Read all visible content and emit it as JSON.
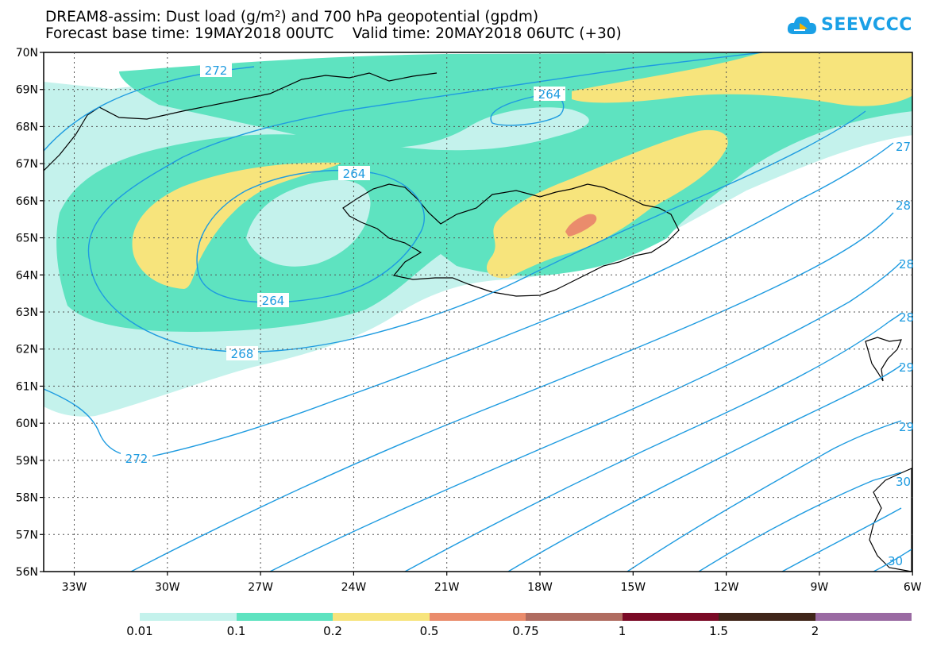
{
  "header": {
    "title_line1": "DREAM8-assim: Dust load (g/m²) and 700 hPa geopotential (gpdm)",
    "base_time": "Forecast base time: 19MAY2018 00UTC",
    "valid_time": "Valid time: 20MAY2018 06UTC (+30)"
  },
  "logo": {
    "text": "SEEVCCC",
    "color": "#1aa0e6"
  },
  "map": {
    "lat_labels": [
      "70N",
      "69N",
      "68N",
      "67N",
      "66N",
      "65N",
      "64N",
      "63N",
      "62N",
      "61N",
      "60N",
      "59N",
      "58N",
      "57N",
      "56N"
    ],
    "lon_labels": [
      "33W",
      "30W",
      "27W",
      "24W",
      "21W",
      "18W",
      "15W",
      "12W",
      "9W",
      "6W"
    ],
    "contour_labels": [
      "272",
      "264",
      "264",
      "264",
      "268",
      "272",
      "27",
      "28",
      "28",
      "28",
      "29",
      "29",
      "30",
      "30"
    ],
    "contour_color": "#1e9be0"
  },
  "colorbar": {
    "labels": [
      "0.01",
      "0.1",
      "0.2",
      "0.5",
      "0.75",
      "1",
      "1.5",
      "2"
    ],
    "colors": [
      "#c4f2ec",
      "#5ee3c0",
      "#f7e47c",
      "#ea8c6c",
      "#b06c60",
      "#7a0a26",
      "#40261a",
      "#9a6aa2"
    ]
  }
}
